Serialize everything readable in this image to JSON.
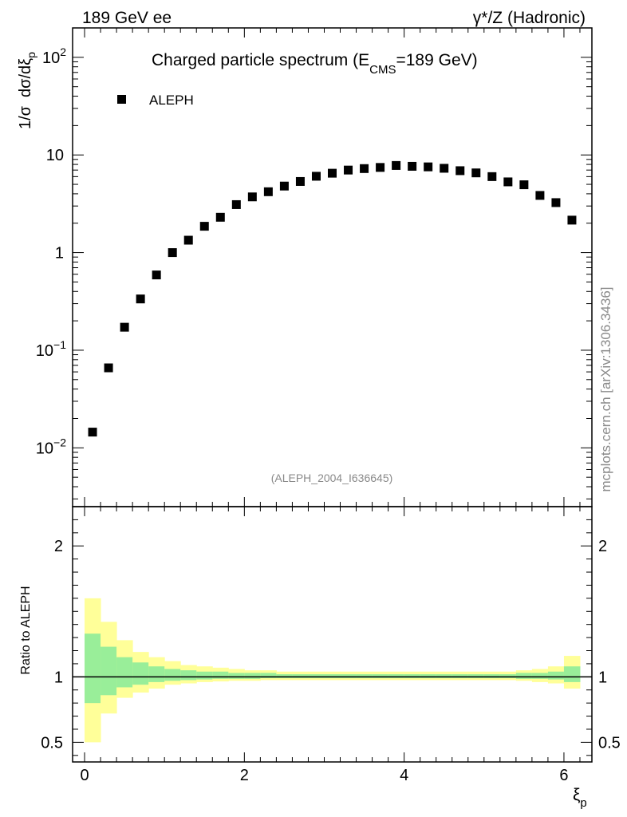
{
  "header": {
    "left": "189 GeV ee",
    "right": "γ*/Z (Hadronic)"
  },
  "side_label": "mcplots.cern.ch [arXiv:1306.3436]",
  "analysis_id": "(ALEPH_2004_I636645)",
  "chart_data": [
    {
      "type": "scatter",
      "title": "Charged particle spectrum (E",
      "title_sub": "CMS",
      "title_end": "=189 GeV)",
      "ylabel_prefix": "1/σ",
      "ylabel_main": "dσ/dξ",
      "ylabel_sub": "p",
      "yscale": "log",
      "ylim": [
        0.0025,
        200
      ],
      "xlim": [
        -0.15,
        6.35
      ],
      "ytick_labels": [
        "10",
        "1",
        "10"
      ],
      "legend": {
        "label": "ALEPH",
        "position": "top-left"
      },
      "series": [
        {
          "name": "ALEPH",
          "x": [
            0.1,
            0.3,
            0.5,
            0.7,
            0.9,
            1.1,
            1.3,
            1.5,
            1.7,
            1.9,
            2.1,
            2.3,
            2.5,
            2.7,
            2.9,
            3.1,
            3.3,
            3.5,
            3.7,
            3.9,
            4.1,
            4.3,
            4.5,
            4.7,
            4.9,
            5.1,
            5.3,
            5.5,
            5.7,
            5.9,
            6.1
          ],
          "y": [
            0.0145,
            0.066,
            0.172,
            0.335,
            0.59,
            1.0,
            1.34,
            1.86,
            2.3,
            3.1,
            3.72,
            4.2,
            4.8,
            5.35,
            6.05,
            6.5,
            7.0,
            7.25,
            7.45,
            7.8,
            7.65,
            7.55,
            7.3,
            6.9,
            6.55,
            6.0,
            5.3,
            4.95,
            3.85,
            3.25,
            2.15
          ]
        }
      ]
    },
    {
      "type": "area",
      "ylabel": "Ratio to ALEPH",
      "xlabel_main": "ξ",
      "xlabel_sub": "p",
      "ylim": [
        0.35,
        2.3
      ],
      "xlim": [
        -0.15,
        6.35
      ],
      "x_tick_labels": [
        "0",
        "2",
        "4",
        "6"
      ],
      "y_tick_labels": [
        "0.5",
        "1",
        "2"
      ],
      "reference_line": 1,
      "bands": {
        "bin_edges": [
          0.0,
          0.2,
          0.4,
          0.6,
          0.8,
          1.0,
          1.2,
          1.4,
          1.6,
          1.8,
          2.0,
          2.2,
          2.4,
          2.6,
          2.8,
          3.0,
          3.2,
          3.4,
          3.6,
          3.8,
          4.0,
          4.2,
          4.4,
          4.6,
          4.8,
          5.0,
          5.2,
          5.4,
          5.6,
          5.8,
          6.0,
          6.2
        ],
        "yellow_hi": [
          1.6,
          1.42,
          1.28,
          1.19,
          1.15,
          1.12,
          1.09,
          1.08,
          1.07,
          1.06,
          1.05,
          1.05,
          1.04,
          1.04,
          1.04,
          1.04,
          1.04,
          1.04,
          1.04,
          1.04,
          1.04,
          1.04,
          1.04,
          1.04,
          1.04,
          1.04,
          1.04,
          1.05,
          1.06,
          1.08,
          1.16
        ],
        "yellow_lo": [
          0.5,
          0.72,
          0.84,
          0.88,
          0.91,
          0.94,
          0.95,
          0.96,
          0.965,
          0.97,
          0.97,
          0.975,
          0.975,
          0.975,
          0.975,
          0.975,
          0.975,
          0.975,
          0.975,
          0.975,
          0.975,
          0.975,
          0.975,
          0.975,
          0.975,
          0.975,
          0.975,
          0.97,
          0.96,
          0.95,
          0.91
        ],
        "green_hi": [
          1.33,
          1.23,
          1.15,
          1.11,
          1.08,
          1.06,
          1.05,
          1.04,
          1.04,
          1.03,
          1.03,
          1.03,
          1.02,
          1.02,
          1.02,
          1.02,
          1.02,
          1.02,
          1.02,
          1.02,
          1.02,
          1.02,
          1.02,
          1.02,
          1.02,
          1.02,
          1.02,
          1.03,
          1.03,
          1.04,
          1.08
        ],
        "green_lo": [
          0.8,
          0.86,
          0.92,
          0.94,
          0.96,
          0.97,
          0.975,
          0.98,
          0.985,
          0.985,
          0.985,
          0.99,
          0.99,
          0.99,
          0.99,
          0.99,
          0.99,
          0.99,
          0.99,
          0.99,
          0.99,
          0.99,
          0.99,
          0.99,
          0.99,
          0.99,
          0.99,
          0.985,
          0.985,
          0.98,
          0.96
        ]
      }
    }
  ],
  "colors": {
    "yellow_band": "#ffff99",
    "green_band": "#99ee99",
    "marker": "#000000",
    "axis": "#000000"
  }
}
